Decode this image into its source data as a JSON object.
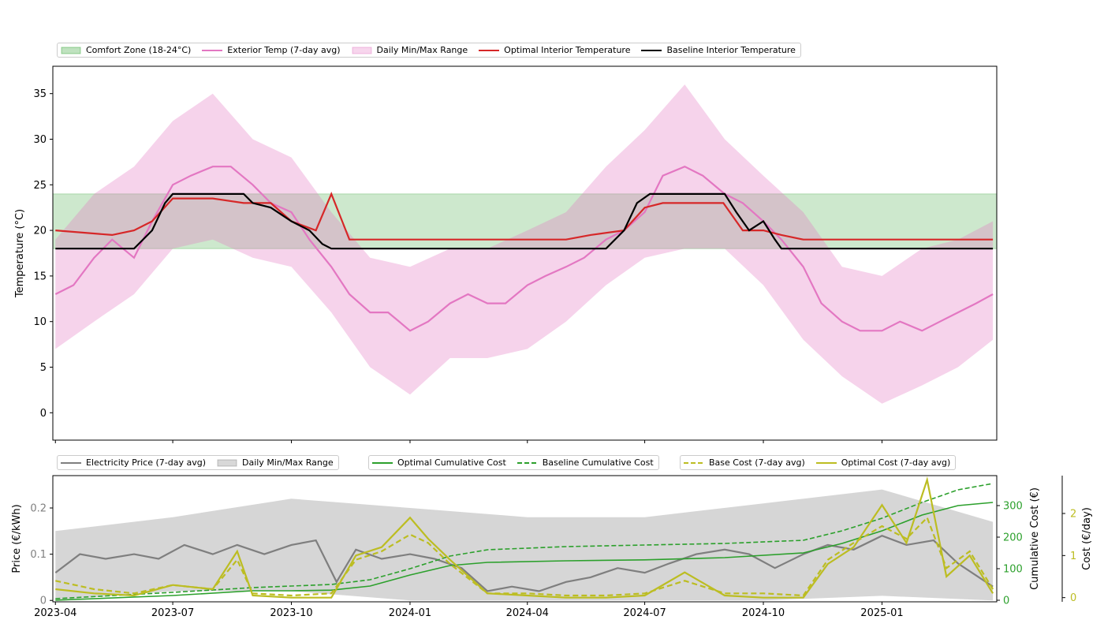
{
  "chart_data": [
    {
      "type": "line",
      "panel": "temperature",
      "ylabel": "Temperature (°C)",
      "xlabel": "",
      "xlim": [
        "2023-03-30",
        "2025-03-31"
      ],
      "ylim": [
        -3,
        38
      ],
      "yticks": [
        0,
        5,
        10,
        15,
        20,
        25,
        30,
        35
      ],
      "comfort_zone": [
        18,
        24
      ],
      "legend_position": "top-left (above plot)",
      "legend": [
        {
          "label": "Comfort Zone (18-24°C)",
          "kind": "patch",
          "color": "#2ca02c"
        },
        {
          "label": "Exterior Temp (7-day avg)",
          "kind": "line",
          "color": "#e377c2"
        },
        {
          "label": "Daily Min/Max Range",
          "kind": "patch",
          "color": "#e377c2"
        },
        {
          "label": "Optimal Interior Temperature",
          "kind": "line",
          "color": "#d62728"
        },
        {
          "label": "Baseline Interior Temperature",
          "kind": "line",
          "color": "#000000"
        }
      ],
      "series": [
        {
          "name": "Exterior Temp (7-day avg)",
          "color": "#e377c2",
          "x": [
            "2023-04-01",
            "2023-04-15",
            "2023-05-01",
            "2023-05-15",
            "2023-06-01",
            "2023-06-15",
            "2023-07-01",
            "2023-07-15",
            "2023-08-01",
            "2023-08-15",
            "2023-09-01",
            "2023-09-15",
            "2023-10-01",
            "2023-10-15",
            "2023-11-01",
            "2023-11-15",
            "2023-12-01",
            "2023-12-15",
            "2024-01-01",
            "2024-01-15",
            "2024-02-01",
            "2024-02-15",
            "2024-03-01",
            "2024-03-15",
            "2024-04-01",
            "2024-04-15",
            "2024-05-01",
            "2024-05-15",
            "2024-06-01",
            "2024-06-15",
            "2024-07-01",
            "2024-07-15",
            "2024-08-01",
            "2024-08-15",
            "2024-09-01",
            "2024-09-15",
            "2024-10-01",
            "2024-10-15",
            "2024-11-01",
            "2024-11-15",
            "2024-12-01",
            "2024-12-15",
            "2025-01-01",
            "2025-01-15",
            "2025-02-01",
            "2025-02-15",
            "2025-03-01",
            "2025-03-15",
            "2025-03-28"
          ],
          "y": [
            13,
            14,
            17,
            19,
            17,
            21,
            25,
            26,
            27,
            27,
            25,
            23,
            22,
            19,
            16,
            13,
            11,
            11,
            9,
            10,
            12,
            13,
            12,
            12,
            14,
            15,
            16,
            17,
            19,
            20,
            22,
            26,
            27,
            26,
            24,
            23,
            21,
            19,
            16,
            12,
            10,
            9,
            9,
            10,
            9,
            10,
            11,
            12,
            13
          ]
        },
        {
          "name": "Daily Min/Max Range (low)",
          "color": "#e377c2",
          "x": [
            "2023-04-01",
            "2023-05-01",
            "2023-06-01",
            "2023-07-01",
            "2023-08-01",
            "2023-09-01",
            "2023-10-01",
            "2023-11-01",
            "2023-12-01",
            "2024-01-01",
            "2024-02-01",
            "2024-03-01",
            "2024-04-01",
            "2024-05-01",
            "2024-06-01",
            "2024-07-01",
            "2024-08-01",
            "2024-09-01",
            "2024-10-01",
            "2024-11-01",
            "2024-12-01",
            "2025-01-01",
            "2025-02-01",
            "2025-03-01",
            "2025-03-28"
          ],
          "y": [
            7,
            10,
            13,
            18,
            19,
            17,
            16,
            11,
            5,
            2,
            6,
            6,
            7,
            10,
            14,
            17,
            18,
            18,
            14,
            8,
            4,
            1,
            3,
            5,
            8
          ]
        },
        {
          "name": "Daily Min/Max Range (high)",
          "color": "#e377c2",
          "x": [
            "2023-04-01",
            "2023-05-01",
            "2023-06-01",
            "2023-07-01",
            "2023-08-01",
            "2023-09-01",
            "2023-10-01",
            "2023-11-01",
            "2023-12-01",
            "2024-01-01",
            "2024-02-01",
            "2024-03-01",
            "2024-04-01",
            "2024-05-01",
            "2024-06-01",
            "2024-07-01",
            "2024-08-01",
            "2024-09-01",
            "2024-10-01",
            "2024-11-01",
            "2024-12-01",
            "2025-01-01",
            "2025-02-01",
            "2025-03-01",
            "2025-03-28"
          ],
          "y": [
            19,
            24,
            27,
            32,
            35,
            30,
            28,
            22,
            17,
            16,
            18,
            18,
            20,
            22,
            27,
            31,
            36,
            30,
            26,
            22,
            16,
            15,
            18,
            19,
            21
          ]
        },
        {
          "name": "Optimal Interior Temperature",
          "color": "#d62728",
          "x": [
            "2023-04-01",
            "2023-05-15",
            "2023-06-01",
            "2023-06-15",
            "2023-07-01",
            "2023-08-01",
            "2023-08-25",
            "2023-09-15",
            "2023-10-01",
            "2023-10-20",
            "2023-11-01",
            "2023-11-15",
            "2023-12-01",
            "2024-01-01",
            "2024-03-01",
            "2024-05-01",
            "2024-05-20",
            "2024-06-15",
            "2024-07-01",
            "2024-07-15",
            "2024-08-01",
            "2024-08-31",
            "2024-09-15",
            "2024-10-01",
            "2024-10-15",
            "2024-11-01",
            "2024-12-01",
            "2025-01-01",
            "2025-02-01",
            "2025-03-01",
            "2025-03-28"
          ],
          "y": [
            20,
            19.5,
            20,
            21,
            23.5,
            23.5,
            23,
            23,
            21,
            20,
            24,
            19,
            19,
            19,
            19,
            19,
            19.5,
            20,
            22.5,
            23,
            23,
            23,
            20,
            20,
            19.5,
            19,
            19,
            19,
            19,
            19,
            19
          ]
        },
        {
          "name": "Baseline Interior Temperature",
          "color": "#000000",
          "x": [
            "2023-04-01",
            "2023-05-15",
            "2023-06-01",
            "2023-06-15",
            "2023-06-25",
            "2023-07-01",
            "2023-08-25",
            "2023-09-01",
            "2023-09-15",
            "2023-10-01",
            "2023-10-15",
            "2023-10-25",
            "2023-11-01",
            "2024-05-15",
            "2024-06-01",
            "2024-06-15",
            "2024-06-25",
            "2024-07-05",
            "2024-07-15",
            "2024-09-01",
            "2024-09-10",
            "2024-09-20",
            "2024-10-01",
            "2024-10-10",
            "2024-10-15",
            "2025-03-28"
          ],
          "y": [
            18,
            18,
            18,
            20,
            23,
            24,
            24,
            23,
            22.5,
            21,
            20,
            18.5,
            18,
            18,
            18,
            20,
            23,
            24,
            24,
            24,
            22,
            20,
            21,
            19,
            18,
            18
          ]
        }
      ]
    },
    {
      "type": "line",
      "panel": "price_and_cost",
      "ylabel": "Price (€/kWh)",
      "ylabel_secondary": "Cumulative Cost (€)",
      "ylabel_tertiary": "Cost (€/day)",
      "xlabel": "",
      "xlim": [
        "2023-03-30",
        "2025-03-31"
      ],
      "x_tick_labels": [
        "2023-04",
        "2023-07",
        "2023-10",
        "2024-01",
        "2024-04",
        "2024-07",
        "2024-10",
        "2025-01"
      ],
      "ylim": [
        -0.003,
        0.27
      ],
      "yticks": [
        0.0,
        0.1,
        0.2
      ],
      "ylim_secondary": [
        -5,
        395
      ],
      "yticks_secondary": [
        0,
        100,
        200,
        300
      ],
      "ylim_tertiary": [
        -0.1,
        2.9
      ],
      "yticks_tertiary": [
        0,
        1,
        2
      ],
      "legend_position": "top (above plot), three groups",
      "legend_groups": [
        [
          {
            "label": "Electricity Price (7-day avg)",
            "kind": "line",
            "color": "#7f7f7f"
          },
          {
            "label": "Daily Min/Max Range",
            "kind": "patch",
            "color": "#7f7f7f"
          }
        ],
        [
          {
            "label": "Optimal Cumulative Cost",
            "kind": "line",
            "color": "#2ca02c"
          },
          {
            "label": "Baseline Cumulative Cost",
            "kind": "dashed",
            "color": "#2ca02c"
          }
        ],
        [
          {
            "label": "Base Cost (7-day avg)",
            "kind": "dashed",
            "color": "#bcbd22"
          },
          {
            "label": "Optimal Cost (7-day avg)",
            "kind": "line",
            "color": "#bcbd22"
          }
        ]
      ],
      "series": [
        {
          "name": "Electricity Price (7-day avg)",
          "axis": "price",
          "color": "#7f7f7f",
          "x": [
            "2023-04-01",
            "2023-04-20",
            "2023-05-10",
            "2023-06-01",
            "2023-06-20",
            "2023-07-10",
            "2023-08-01",
            "2023-08-20",
            "2023-09-10",
            "2023-10-01",
            "2023-10-20",
            "2023-11-05",
            "2023-11-20",
            "2023-12-10",
            "2024-01-01",
            "2024-01-20",
            "2024-02-10",
            "2024-03-01",
            "2024-03-20",
            "2024-04-10",
            "2024-05-01",
            "2024-05-20",
            "2024-06-10",
            "2024-07-01",
            "2024-07-20",
            "2024-08-10",
            "2024-09-01",
            "2024-09-20",
            "2024-10-10",
            "2024-11-01",
            "2024-11-20",
            "2024-12-10",
            "2025-01-01",
            "2025-01-20",
            "2025-02-10",
            "2025-03-01",
            "2025-03-28"
          ],
          "y": [
            0.06,
            0.1,
            0.09,
            0.1,
            0.09,
            0.12,
            0.1,
            0.12,
            0.1,
            0.12,
            0.13,
            0.04,
            0.11,
            0.09,
            0.1,
            0.09,
            0.07,
            0.02,
            0.03,
            0.02,
            0.04,
            0.05,
            0.07,
            0.06,
            0.08,
            0.1,
            0.11,
            0.1,
            0.07,
            0.1,
            0.12,
            0.11,
            0.14,
            0.12,
            0.13,
            0.08,
            0.03
          ]
        },
        {
          "name": "Daily Min/Max Range (low)",
          "axis": "price",
          "color": "#7f7f7f",
          "x": [
            "2023-04-01",
            "2023-07-01",
            "2023-10-01",
            "2024-01-01",
            "2024-04-01",
            "2024-07-01",
            "2024-10-01",
            "2025-01-01",
            "2025-03-28"
          ],
          "y": [
            0.0,
            0.02,
            0.02,
            0.0,
            0.0,
            0.0,
            0.0,
            0.01,
            0.0
          ]
        },
        {
          "name": "Daily Min/Max Range (high)",
          "axis": "price",
          "color": "#7f7f7f",
          "x": [
            "2023-04-01",
            "2023-07-01",
            "2023-10-01",
            "2024-01-01",
            "2024-04-01",
            "2024-07-01",
            "2024-10-01",
            "2025-01-01",
            "2025-03-28"
          ],
          "y": [
            0.15,
            0.18,
            0.22,
            0.2,
            0.18,
            0.18,
            0.21,
            0.24,
            0.17
          ]
        },
        {
          "name": "Optimal Cumulative Cost",
          "axis": "cumulative",
          "color": "#2ca02c",
          "x": [
            "2023-04-01",
            "2023-07-01",
            "2023-09-01",
            "2023-10-01",
            "2023-11-01",
            "2023-12-01",
            "2024-01-01",
            "2024-02-01",
            "2024-03-01",
            "2024-05-01",
            "2024-07-01",
            "2024-09-01",
            "2024-11-01",
            "2024-12-01",
            "2025-01-01",
            "2025-02-01",
            "2025-03-01",
            "2025-03-28"
          ],
          "y": [
            0,
            15,
            30,
            30,
            32,
            45,
            80,
            110,
            120,
            125,
            128,
            135,
            150,
            180,
            220,
            270,
            300,
            310
          ]
        },
        {
          "name": "Baseline Cumulative Cost",
          "axis": "cumulative",
          "color": "#2ca02c",
          "x": [
            "2023-04-01",
            "2023-07-01",
            "2023-09-01",
            "2023-10-01",
            "2023-11-01",
            "2023-12-01",
            "2024-01-01",
            "2024-02-01",
            "2024-03-01",
            "2024-05-01",
            "2024-07-01",
            "2024-09-01",
            "2024-11-01",
            "2024-12-01",
            "2025-01-01",
            "2025-02-01",
            "2025-03-01",
            "2025-03-28"
          ],
          "y": [
            5,
            25,
            40,
            45,
            50,
            65,
            100,
            140,
            160,
            170,
            175,
            180,
            190,
            220,
            260,
            310,
            350,
            370
          ]
        },
        {
          "name": "Base Cost (7-day avg)",
          "axis": "daily",
          "color": "#bcbd22",
          "x": [
            "2023-04-01",
            "2023-05-01",
            "2023-06-01",
            "2023-07-01",
            "2023-08-01",
            "2023-08-20",
            "2023-09-01",
            "2023-10-01",
            "2023-11-01",
            "2023-11-20",
            "2023-12-10",
            "2024-01-01",
            "2024-01-15",
            "2024-02-01",
            "2024-03-01",
            "2024-04-01",
            "2024-05-01",
            "2024-06-01",
            "2024-07-01",
            "2024-08-01",
            "2024-09-01",
            "2024-10-01",
            "2024-11-01",
            "2024-11-20",
            "2024-12-10",
            "2025-01-01",
            "2025-01-20",
            "2025-02-05",
            "2025-02-20",
            "2025-03-10",
            "2025-03-28"
          ],
          "y": [
            0.4,
            0.2,
            0.1,
            0.3,
            0.2,
            0.9,
            0.1,
            0.05,
            0.1,
            0.9,
            1.1,
            1.5,
            1.3,
            0.8,
            0.1,
            0.1,
            0.05,
            0.05,
            0.1,
            0.4,
            0.1,
            0.1,
            0.05,
            0.9,
            1.3,
            1.7,
            1.4,
            1.9,
            0.7,
            1.1,
            0.2
          ]
        },
        {
          "name": "Optimal Cost (7-day avg)",
          "axis": "daily",
          "color": "#bcbd22",
          "x": [
            "2023-04-01",
            "2023-05-01",
            "2023-06-01",
            "2023-07-01",
            "2023-08-01",
            "2023-08-20",
            "2023-09-01",
            "2023-10-01",
            "2023-11-01",
            "2023-11-20",
            "2023-12-10",
            "2024-01-01",
            "2024-01-15",
            "2024-02-01",
            "2024-03-01",
            "2024-04-01",
            "2024-05-01",
            "2024-06-01",
            "2024-07-01",
            "2024-08-01",
            "2024-09-01",
            "2024-10-01",
            "2024-11-01",
            "2024-11-20",
            "2024-12-10",
            "2025-01-01",
            "2025-01-20",
            "2025-02-05",
            "2025-02-20",
            "2025-03-10",
            "2025-03-28"
          ],
          "y": [
            0.2,
            0.1,
            0.05,
            0.3,
            0.2,
            1.1,
            0.05,
            0.0,
            0.0,
            1.0,
            1.2,
            1.9,
            1.4,
            0.9,
            0.1,
            0.05,
            0.0,
            0.0,
            0.05,
            0.6,
            0.05,
            0.0,
            0.0,
            0.8,
            1.2,
            2.2,
            1.3,
            2.8,
            0.5,
            1.0,
            0.1
          ]
        }
      ]
    }
  ]
}
